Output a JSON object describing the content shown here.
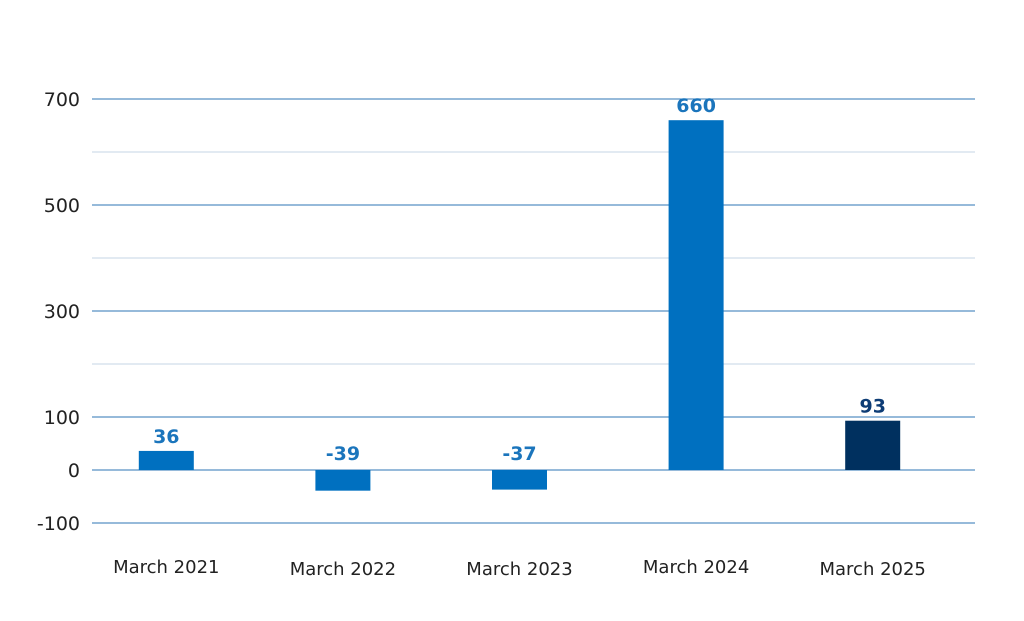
{
  "chart_data": {
    "type": "bar",
    "categories": [
      "March 2021",
      "March 2022",
      "March 2023",
      "March 2024",
      "March 2025"
    ],
    "values": [
      36,
      -39,
      -37,
      660,
      93
    ],
    "data_labels": [
      "36",
      "-39",
      "-37",
      "660",
      "93"
    ],
    "title": "",
    "xlabel": "",
    "ylabel": "",
    "ylim": [
      -100,
      700
    ],
    "yticks": [
      -100,
      0,
      100,
      300,
      500,
      700
    ],
    "yticks_labels": [
      "-100",
      "0",
      "100",
      "300",
      "500",
      "700"
    ],
    "grid": true,
    "legend": "none",
    "colors": {
      "bar": "#0070C0",
      "highlight_bar": "#00305F",
      "label": "#1B75BC",
      "highlight_label": "#0D3C75",
      "major_grid": "#2E75B6",
      "minor_grid": "#C5D5E4"
    },
    "highlight_index": 4
  }
}
